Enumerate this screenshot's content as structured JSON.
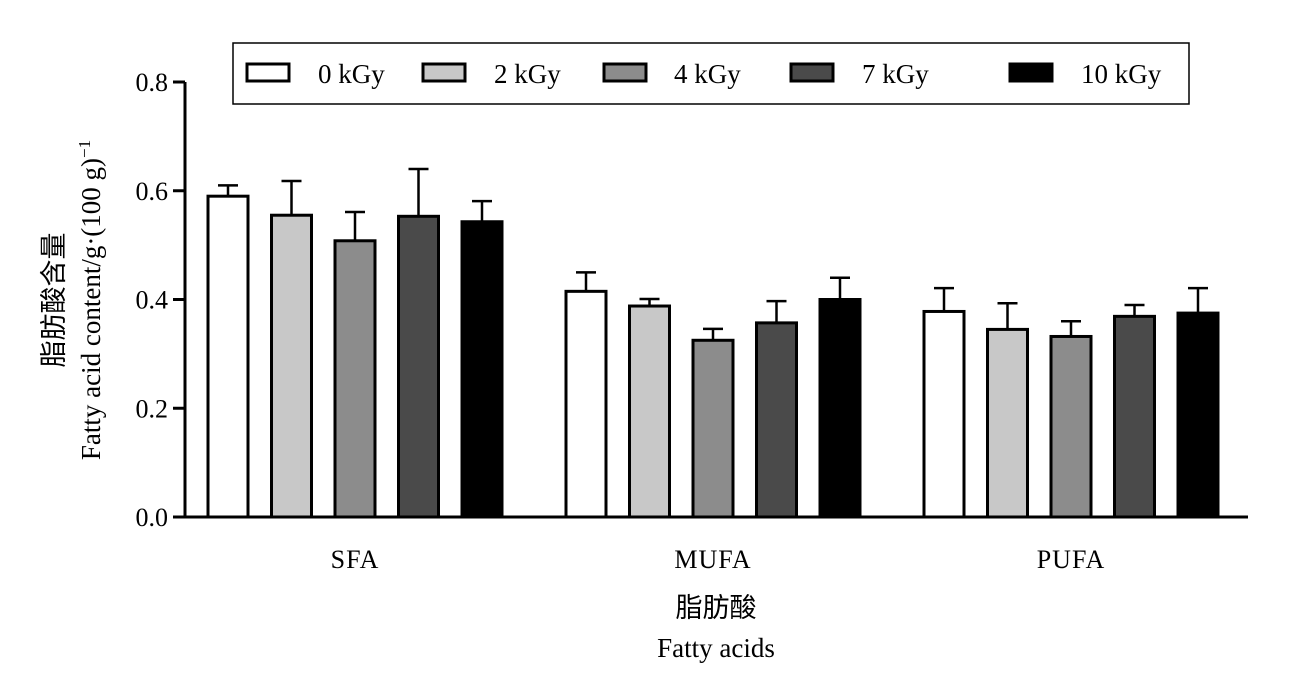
{
  "chart_data": {
    "type": "bar",
    "categories": [
      "SFA",
      "MUFA",
      "PUFA"
    ],
    "series": [
      {
        "name": "0 kGy",
        "values": [
          0.59,
          0.415,
          0.378
        ],
        "errors": [
          0.02,
          0.035,
          0.043
        ],
        "color": "#ffffff"
      },
      {
        "name": "2 kGy",
        "values": [
          0.555,
          0.388,
          0.345
        ],
        "errors": [
          0.063,
          0.013,
          0.048
        ],
        "color": "#c8c8c8"
      },
      {
        "name": "4 kGy",
        "values": [
          0.508,
          0.325,
          0.332
        ],
        "errors": [
          0.053,
          0.021,
          0.028
        ],
        "color": "#8c8c8c"
      },
      {
        "name": "7 kGy",
        "values": [
          0.553,
          0.357,
          0.369
        ],
        "errors": [
          0.087,
          0.04,
          0.021
        ],
        "color": "#4a4a4a"
      },
      {
        "name": "10 kGy",
        "values": [
          0.543,
          0.4,
          0.375
        ],
        "errors": [
          0.038,
          0.04,
          0.046
        ],
        "color": "#000000"
      }
    ],
    "yticks": [
      "0.0",
      "0.2",
      "0.4",
      "0.6",
      "0.8"
    ],
    "ylim": [
      0,
      0.8
    ],
    "ylabel_cn": "脂肪酸含量",
    "ylabel_en": "Fatty  acid  content/g·(100 g)",
    "ylabel_sup": "−1",
    "xlabel_cn": "脂肪酸",
    "xlabel_en": "Fatty  acids",
    "legend_position": "top",
    "grid": false
  }
}
